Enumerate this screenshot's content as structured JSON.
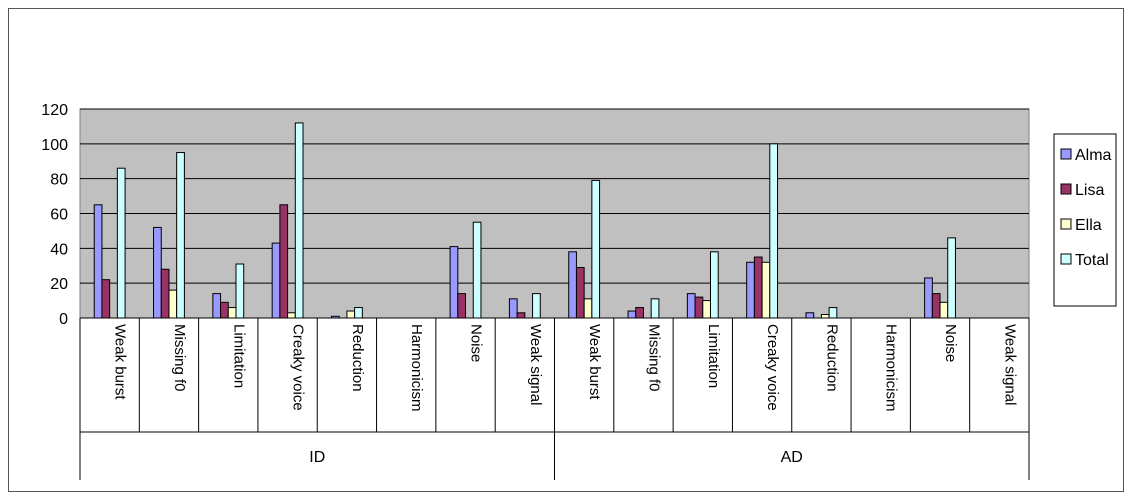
{
  "chart_data": {
    "type": "bar",
    "title": "",
    "xlabel": "",
    "ylabel": "",
    "ylim": [
      0,
      120
    ],
    "yticks": [
      0,
      20,
      40,
      60,
      80,
      100,
      120
    ],
    "grid": true,
    "legend_position": "right",
    "groups": [
      {
        "label": "ID",
        "categories": [
          "Weak burst",
          "Missing f0",
          "Limitation",
          "Creaky voice",
          "Reduction",
          "Harmonicism",
          "Noise",
          "Weak signal"
        ]
      },
      {
        "label": "AD",
        "categories": [
          "Weak burst",
          "Missing f0",
          "Limitation",
          "Creaky voice",
          "Reduction",
          "Harmonicism",
          "Noise",
          "Weak signal"
        ]
      }
    ],
    "series": [
      {
        "name": "Alma",
        "color": "#9999ff",
        "values": [
          65,
          52,
          14,
          43,
          1,
          0,
          41,
          11,
          38,
          4,
          14,
          32,
          3,
          0,
          23,
          0
        ]
      },
      {
        "name": "Lisa",
        "color": "#993366",
        "values": [
          22,
          28,
          9,
          65,
          0,
          0,
          14,
          3,
          29,
          6,
          12,
          35,
          0,
          0,
          14,
          0
        ]
      },
      {
        "name": "Ella",
        "color": "#ffffcc",
        "values": [
          0,
          16,
          6,
          3,
          4,
          0,
          0,
          0,
          11,
          0,
          10,
          32,
          2,
          0,
          9,
          0
        ]
      },
      {
        "name": "Total",
        "color": "#ccffff",
        "values": [
          86,
          95,
          31,
          112,
          6,
          0,
          55,
          14,
          79,
          11,
          38,
          100,
          6,
          0,
          46,
          0
        ]
      }
    ]
  }
}
